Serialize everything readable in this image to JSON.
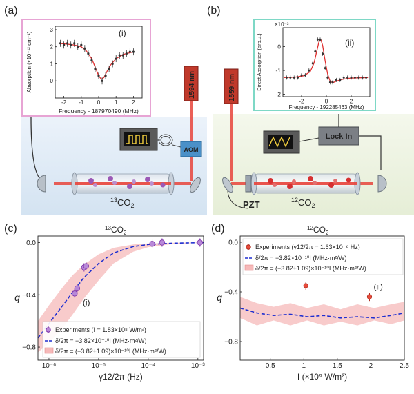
{
  "panels": {
    "a": {
      "label": "(a)",
      "inset_tag": "(i)",
      "laser_label": "1594 nm",
      "aom_label": "AOM",
      "gas_label": "13CO2",
      "colors": {
        "inset_border": "#e7a4d4",
        "inset_tag": "#b030c0",
        "floor": "#d4e4f2",
        "beam": "#e8453c"
      }
    },
    "b": {
      "label": "(b)",
      "inset_tag": "(ii)",
      "laser_label": "1559 nm",
      "lockin_label": "Lock In",
      "pzt_label": "PZT",
      "gas_label": "12CO2",
      "colors": {
        "inset_border": "#7ed8c6",
        "inset_tag": "#e02020",
        "floor": "#e8f0d8",
        "beam": "#e8453c"
      }
    },
    "c": {
      "label": "(c)",
      "header": "13CO2",
      "callout": "(i)"
    },
    "d": {
      "label": "(d)",
      "header": "12CO2",
      "callout": "(ii)"
    }
  },
  "chart_data": [
    {
      "id": "inset-i",
      "type": "scatter",
      "xlabel": "Frequency - 187970490 (MHz)",
      "ylabel": "Absorption (×10⁻¹² cm⁻¹)",
      "xlim": [
        -2.5,
        2.5
      ],
      "ylim": [
        -1,
        3.2
      ],
      "xticks": [
        -2,
        -1,
        0,
        1,
        2
      ],
      "yticks": [
        0,
        1,
        2,
        3
      ],
      "points": {
        "x": [
          -2.2,
          -2.0,
          -1.8,
          -1.6,
          -1.4,
          -1.2,
          -1.0,
          -0.8,
          -0.6,
          -0.4,
          -0.2,
          0.0,
          0.2,
          0.4,
          0.6,
          0.8,
          1.0,
          1.2,
          1.4,
          1.6,
          1.8,
          2.0
        ],
        "y": [
          2.2,
          2.1,
          2.2,
          2.1,
          2.2,
          2.0,
          2.1,
          1.9,
          1.6,
          1.2,
          0.7,
          0.3,
          0.0,
          0.3,
          0.7,
          1.0,
          1.3,
          1.5,
          1.5,
          1.6,
          1.7,
          1.7
        ]
      },
      "fit": {
        "x": [
          -2.3,
          -1.8,
          -1.4,
          -1.0,
          -0.7,
          -0.4,
          -0.2,
          0.0,
          0.15,
          0.3,
          0.5,
          0.7,
          1.0,
          1.4,
          1.8,
          2.0
        ],
        "y": [
          2.2,
          2.15,
          2.1,
          2.0,
          1.75,
          1.3,
          0.8,
          0.3,
          0.1,
          0.2,
          0.6,
          0.95,
          1.3,
          1.55,
          1.65,
          1.7
        ]
      }
    },
    {
      "id": "inset-ii",
      "type": "scatter",
      "xlabel": "Frequency - 192285463 (MHz)",
      "ylabel": "Direct Absorption (arb.u.)",
      "exponent_label": "×10⁻³",
      "xlim": [
        -3.5,
        3.5
      ],
      "ylim": [
        -2.1,
        0.8
      ],
      "xticks": [
        -2,
        0,
        2
      ],
      "yticks": [
        0,
        -1,
        -2
      ],
      "points": {
        "x": [
          -3.2,
          -2.9,
          -2.6,
          -2.3,
          -2.0,
          -1.7,
          -1.4,
          -1.1,
          -0.9,
          -0.7,
          -0.5,
          -0.3,
          -0.1,
          0.1,
          0.3,
          0.5,
          0.8,
          1.1,
          1.4,
          1.7,
          2.0,
          2.3,
          2.6,
          2.9,
          3.2
        ],
        "y": [
          -1.3,
          -1.3,
          -1.3,
          -1.3,
          -1.2,
          -1.2,
          -1.0,
          -0.7,
          -0.2,
          0.3,
          0.3,
          -0.3,
          -0.9,
          -1.3,
          -1.5,
          -1.5,
          -1.4,
          -1.4,
          -1.3,
          -1.3,
          -1.3,
          -1.3,
          -1.3,
          -1.3,
          -1.3
        ]
      },
      "fit": {
        "x": [
          -3.4,
          -2.5,
          -1.8,
          -1.3,
          -1.0,
          -0.8,
          -0.6,
          -0.45,
          -0.3,
          -0.1,
          0.1,
          0.3,
          0.5,
          0.8,
          1.2,
          1.8,
          2.5,
          3.4
        ],
        "y": [
          -1.3,
          -1.28,
          -1.22,
          -1.05,
          -0.7,
          -0.25,
          0.2,
          0.3,
          0.05,
          -0.6,
          -1.15,
          -1.45,
          -1.52,
          -1.45,
          -1.38,
          -1.33,
          -1.31,
          -1.3
        ]
      }
    },
    {
      "id": "panel-c",
      "type": "scatter",
      "xlabel": "γ12/2π (Hz)",
      "ylabel": "q",
      "xscale": "log",
      "xlim": [
        6e-07,
        0.0013
      ],
      "ylim": [
        -0.9,
        0.05
      ],
      "xticks": [
        1e-06,
        1e-05,
        0.0001,
        0.001
      ],
      "xticklabels": [
        "10⁻⁶",
        "10⁻⁵",
        "10⁻⁴",
        "10⁻³"
      ],
      "yticks": [
        0.0,
        -0.4,
        -0.8
      ],
      "yticklabels": [
        "0.0",
        "−0.4",
        "−0.8"
      ],
      "grid": false,
      "legend": [
        "Experiments (I = 1.83×10⁸ W/m²)",
        "δ/2π = −3.82×10⁻¹⁰I (MHz·m²/W)",
        "δ/2π = (−3.82±1.09)×10⁻¹⁰I (MHz·m²/W)"
      ],
      "experiments": {
        "x": [
          3.3e-06,
          3.7e-06,
          5.1e-06,
          5.6e-06,
          0.00012,
          0.00019,
          0.0011
        ],
        "y": [
          -0.39,
          -0.35,
          -0.19,
          -0.18,
          -0.01,
          0.0,
          0.0
        ]
      },
      "model_x": [
        6e-07,
        1e-06,
        2e-06,
        3e-06,
        5e-06,
        1e-05,
        2e-05,
        5e-05,
        0.0001,
        0.0003,
        0.001,
        0.0013
      ],
      "model": [
        -0.73,
        -0.62,
        -0.47,
        -0.38,
        -0.27,
        -0.16,
        -0.08,
        -0.03,
        -0.015,
        -0.005,
        -0.001,
        0.0
      ],
      "band_low": [
        -0.84,
        -0.77,
        -0.64,
        -0.55,
        -0.43,
        -0.29,
        -0.16,
        -0.07,
        -0.035,
        -0.012,
        -0.003,
        -0.001
      ],
      "band_high": [
        -0.6,
        -0.48,
        -0.33,
        -0.25,
        -0.17,
        -0.09,
        -0.04,
        -0.015,
        -0.007,
        -0.002,
        0.0,
        0.0
      ]
    },
    {
      "id": "panel-d",
      "type": "scatter",
      "xlabel": "I (×10⁹ W/m²)",
      "ylabel": "q",
      "xlim": [
        0.05,
        2.5
      ],
      "ylim": [
        -0.95,
        0.05
      ],
      "xticks": [
        0.5,
        1.0,
        1.5,
        2.0,
        2.5
      ],
      "yticks": [
        0.0,
        -0.4,
        -0.8
      ],
      "yticklabels": [
        "0.0",
        "−0.4",
        "−0.8"
      ],
      "grid": false,
      "legend": [
        "Experiments (γ12/2π = 1.63×10⁻⁶ Hz)",
        "δ/2π = −3.82×10⁻¹⁰I (MHz·m²/W)",
        "δ/2π = (−3.82±1.09)×10⁻¹⁰I (MHz·m²/W)"
      ],
      "experiments": {
        "x": [
          1.03,
          1.98
        ],
        "y": [
          -0.35,
          -0.44
        ]
      },
      "model_x": [
        0.05,
        0.3,
        0.55,
        0.8,
        1.05,
        1.3,
        1.55,
        1.8,
        2.05,
        2.3,
        2.5
      ],
      "model": [
        -0.53,
        -0.57,
        -0.59,
        -0.58,
        -0.6,
        -0.59,
        -0.61,
        -0.6,
        -0.61,
        -0.59,
        -0.57
      ],
      "band_low": [
        -0.61,
        -0.67,
        -0.63,
        -0.67,
        -0.63,
        -0.67,
        -0.64,
        -0.67,
        -0.63,
        -0.66,
        -0.63
      ],
      "band_high": [
        -0.44,
        -0.49,
        -0.52,
        -0.49,
        -0.53,
        -0.5,
        -0.54,
        -0.5,
        -0.53,
        -0.5,
        -0.48
      ]
    }
  ]
}
